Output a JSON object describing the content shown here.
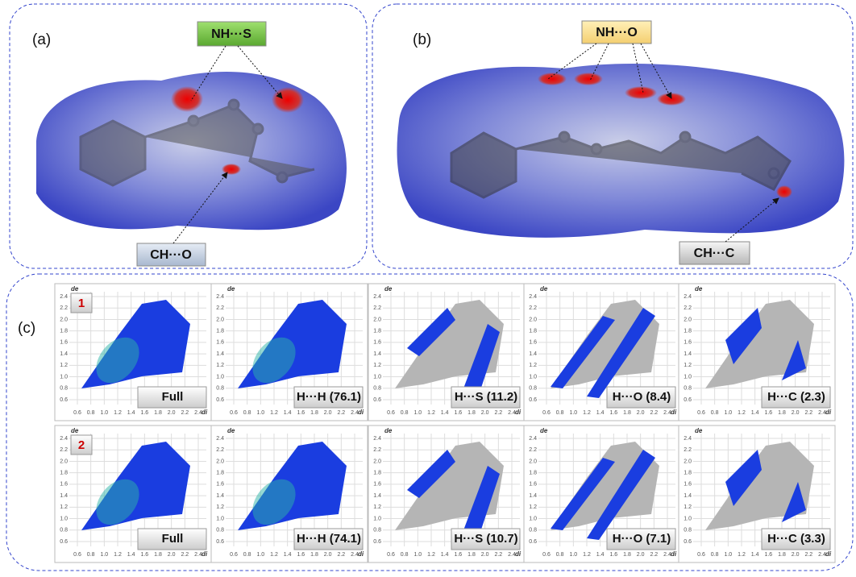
{
  "panel_a": {
    "label": "(a)",
    "callouts": [
      "NH···S",
      "CH···O"
    ]
  },
  "panel_b": {
    "label": "(b)",
    "callouts": [
      "NH···O",
      "CH···C"
    ]
  },
  "panel_c": {
    "label": "(c)",
    "y_axis_label": "de",
    "x_axis_label": "di",
    "yticks": [
      "0.6",
      "0.8",
      "1.0",
      "1.2",
      "1.4",
      "1.6",
      "1.8",
      "2.0",
      "2.2",
      "2.4"
    ],
    "xticks": [
      "0.6",
      "0.8",
      "1.0",
      "1.2",
      "1.4",
      "1.6",
      "1.8",
      "2.0",
      "2.2",
      "2.4"
    ],
    "rows": [
      {
        "label": "1",
        "plots": [
          "Full",
          "H···H (76.1)",
          "H···S (11.2)",
          "H···O (8.4)",
          "H···C (2.3)"
        ]
      },
      {
        "label": "2",
        "plots": [
          "Full",
          "H···H (74.1)",
          "H···S (10.7)",
          "H···O (7.1)",
          "H···C (3.3)"
        ]
      }
    ]
  }
}
